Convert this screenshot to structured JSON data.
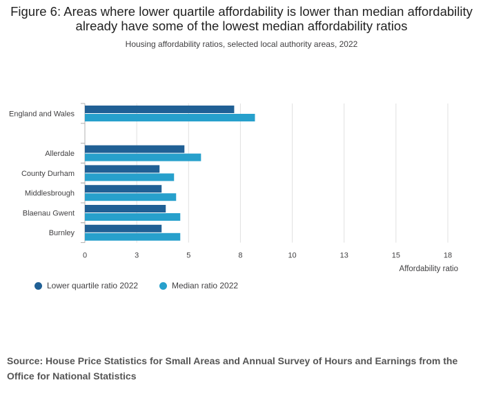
{
  "title": "Figure 6: Areas where lower quartile affordability is lower than median affordability already have some of the lowest median affordability ratios",
  "subtitle": "Housing affordability ratios, selected local authority areas, 2022",
  "source": "Source: House Price Statistics for Small Areas and Annual Survey of Hours and Earnings from the Office for National Statistics",
  "colors": {
    "lower_quartile": "#206095",
    "median": "#27a0cc",
    "grid": "#e0e0e0",
    "axis": "#b0b0b0"
  },
  "chart_data": {
    "type": "bar",
    "orientation": "horizontal",
    "categories": [
      "England and Wales",
      "",
      "Allerdale",
      "County Durham",
      "Middlesbrough",
      "Blaenau Gwent",
      "Burnley"
    ],
    "series": [
      {
        "name": "Lower quartile ratio 2022",
        "values": [
          7.2,
          null,
          4.8,
          3.6,
          3.7,
          3.9,
          3.7
        ]
      },
      {
        "name": "Median ratio 2022",
        "values": [
          8.2,
          null,
          5.6,
          4.3,
          4.4,
          4.6,
          4.6
        ]
      }
    ],
    "xlabel": "Affordability ratio",
    "ylabel": "",
    "xlim": [
      0,
      17.5
    ],
    "ticks": [
      0,
      2.5,
      5,
      7.5,
      10,
      12.5,
      15,
      17.5
    ],
    "tick_labels": [
      "0",
      "3",
      "5",
      "8",
      "10",
      "13",
      "15",
      "18"
    ],
    "grid": true,
    "legend_position": "bottom-left"
  }
}
